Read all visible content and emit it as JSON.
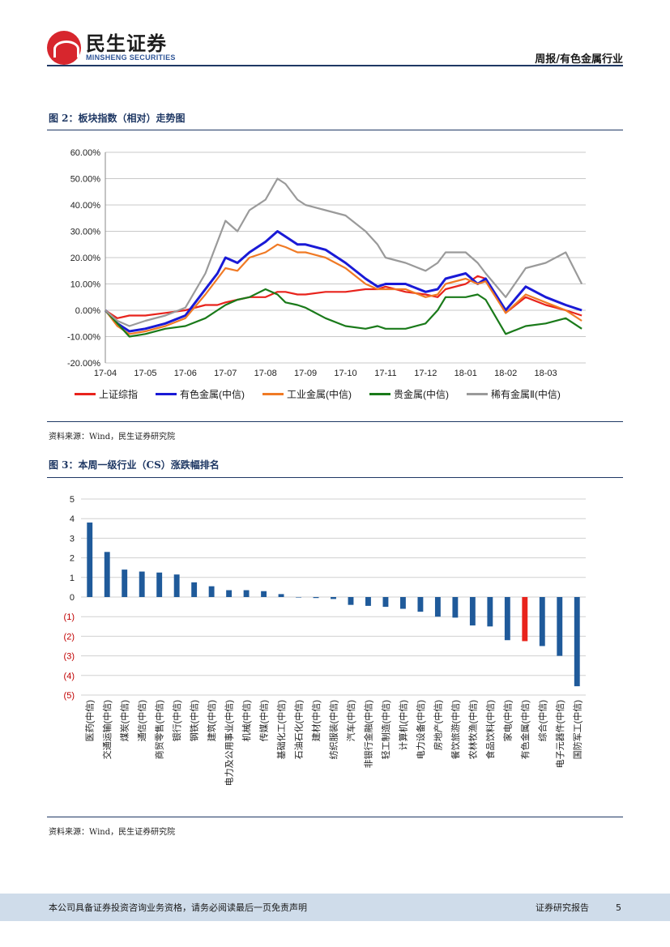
{
  "header": {
    "logo_cn": "民生证券",
    "logo_en": "MINSHENG SECURITIES",
    "right_title": "周报/有色金属行业"
  },
  "fig2": {
    "title": "图 2：板块指数（相对）走势图",
    "source": "资料来源：Wind，民生证券研究院"
  },
  "fig3": {
    "title": "图 3：本周一级行业（CS）涨跌幅排名",
    "source": "资料来源：Wind，民生证券研究院"
  },
  "footer": {
    "disclaimer": "本公司具备证券投资咨询业务资格，请务必阅读最后一页免责声明",
    "report_type": "证券研究报告",
    "page": "5"
  },
  "chart_data": [
    {
      "type": "line",
      "title": "图 2：板块指数（相对）走势图",
      "x_ticks": [
        "17-04",
        "17-05",
        "17-06",
        "17-07",
        "17-08",
        "17-09",
        "17-10",
        "17-11",
        "17-12",
        "18-01",
        "18-02",
        "18-03"
      ],
      "y_ticks": [
        "60.00%",
        "50.00%",
        "40.00%",
        "30.00%",
        "20.00%",
        "10.00%",
        "0.00%",
        "-10.00%",
        "-20.00%"
      ],
      "ylim": [
        -20,
        60
      ],
      "x": [
        0,
        0.3,
        0.6,
        1,
        1.5,
        2,
        2.5,
        2.8,
        3,
        3.3,
        3.6,
        4,
        4.3,
        4.5,
        4.8,
        5,
        5.5,
        6,
        6.5,
        6.8,
        7,
        7.5,
        8,
        8.3,
        8.5,
        9,
        9.3,
        9.5,
        10,
        10.5,
        11,
        11.5,
        11.9
      ],
      "series": [
        {
          "name": "上证综指",
          "color": "#e8231c",
          "values": [
            0,
            -3,
            -2,
            -2,
            -1,
            0,
            2,
            2,
            3,
            4,
            5,
            5,
            7,
            7,
            6,
            6,
            7,
            7,
            8,
            8,
            9,
            7,
            6,
            5,
            8,
            10,
            13,
            12,
            -1,
            5,
            2,
            0,
            -2
          ]
        },
        {
          "name": "有色金属(中信)",
          "color": "#1a1ad6",
          "values": [
            0,
            -5,
            -8,
            -7,
            -5,
            -2,
            8,
            14,
            20,
            18,
            22,
            26,
            30,
            28,
            25,
            25,
            23,
            18,
            12,
            9,
            10,
            10,
            7,
            8,
            12,
            14,
            10,
            12,
            0,
            9,
            5,
            2,
            0
          ]
        },
        {
          "name": "工业金属(中信)",
          "color": "#f07a25",
          "values": [
            0,
            -6,
            -9,
            -8,
            -6,
            -3,
            6,
            12,
            16,
            15,
            20,
            22,
            25,
            24,
            22,
            22,
            20,
            16,
            10,
            8,
            8,
            8,
            5,
            6,
            10,
            12,
            10,
            11,
            -1,
            6,
            3,
            0,
            -4
          ]
        },
        {
          "name": "贵金属(中信)",
          "color": "#1a7a1a",
          "values": [
            0,
            -5,
            -10,
            -9,
            -7,
            -6,
            -3,
            0,
            2,
            4,
            5,
            8,
            6,
            3,
            2,
            1,
            -3,
            -6,
            -7,
            -6,
            -7,
            -7,
            -5,
            0,
            5,
            5,
            6,
            4,
            -9,
            -6,
            -5,
            -3,
            -7
          ]
        },
        {
          "name": "稀有金属Ⅱ(中信)",
          "color": "#9a9a9a",
          "values": [
            0,
            -4,
            -6,
            -4,
            -2,
            1,
            14,
            26,
            34,
            30,
            38,
            42,
            50,
            48,
            42,
            40,
            38,
            36,
            30,
            25,
            20,
            18,
            15,
            18,
            22,
            22,
            18,
            14,
            5,
            16,
            18,
            22,
            10
          ]
        }
      ]
    },
    {
      "type": "bar",
      "title": "图 3：本周一级行业（CS）涨跌幅排名",
      "y_ticks": [
        "5",
        "4",
        "3",
        "2",
        "1",
        "0",
        "(1)",
        "(2)",
        "(3)",
        "(4)",
        "(5)"
      ],
      "ylim": [
        -5,
        5
      ],
      "categories": [
        "医药(中信)",
        "交通运输(中信)",
        "煤炭(中信)",
        "通信(中信)",
        "商贸零售(中信)",
        "银行(中信)",
        "钢铁(中信)",
        "建筑(中信)",
        "电力及公用事业(中信)",
        "机械(中信)",
        "传媒(中信)",
        "基础化工(中信)",
        "石油石化(中信)",
        "建材(中信)",
        "纺织服装(中信)",
        "汽车(中信)",
        "非银行金融(中信)",
        "轻工制造(中信)",
        "计算机(中信)",
        "电力设备(中信)",
        "房地产(中信)",
        "餐饮旅游(中信)",
        "农林牧渔(中信)",
        "食品饮料(中信)",
        "家电(中信)",
        "有色金属(中信)",
        "综合(中信)",
        "电子元器件(中信)",
        "国防军工(中信)"
      ],
      "values": [
        3.8,
        2.3,
        1.4,
        1.3,
        1.25,
        1.15,
        0.75,
        0.55,
        0.35,
        0.35,
        0.3,
        0.15,
        0.0,
        -0.05,
        -0.1,
        -0.4,
        -0.45,
        -0.5,
        -0.6,
        -0.75,
        -1.0,
        -1.05,
        -1.45,
        -1.5,
        -2.2,
        -2.25,
        -2.5,
        -3.0,
        -4.55
      ],
      "highlight": "有色金属(中信)",
      "colors": {
        "bar": "#1f5a9a",
        "highlight": "#e8231c",
        "neg_tick": "#c00000"
      }
    }
  ]
}
